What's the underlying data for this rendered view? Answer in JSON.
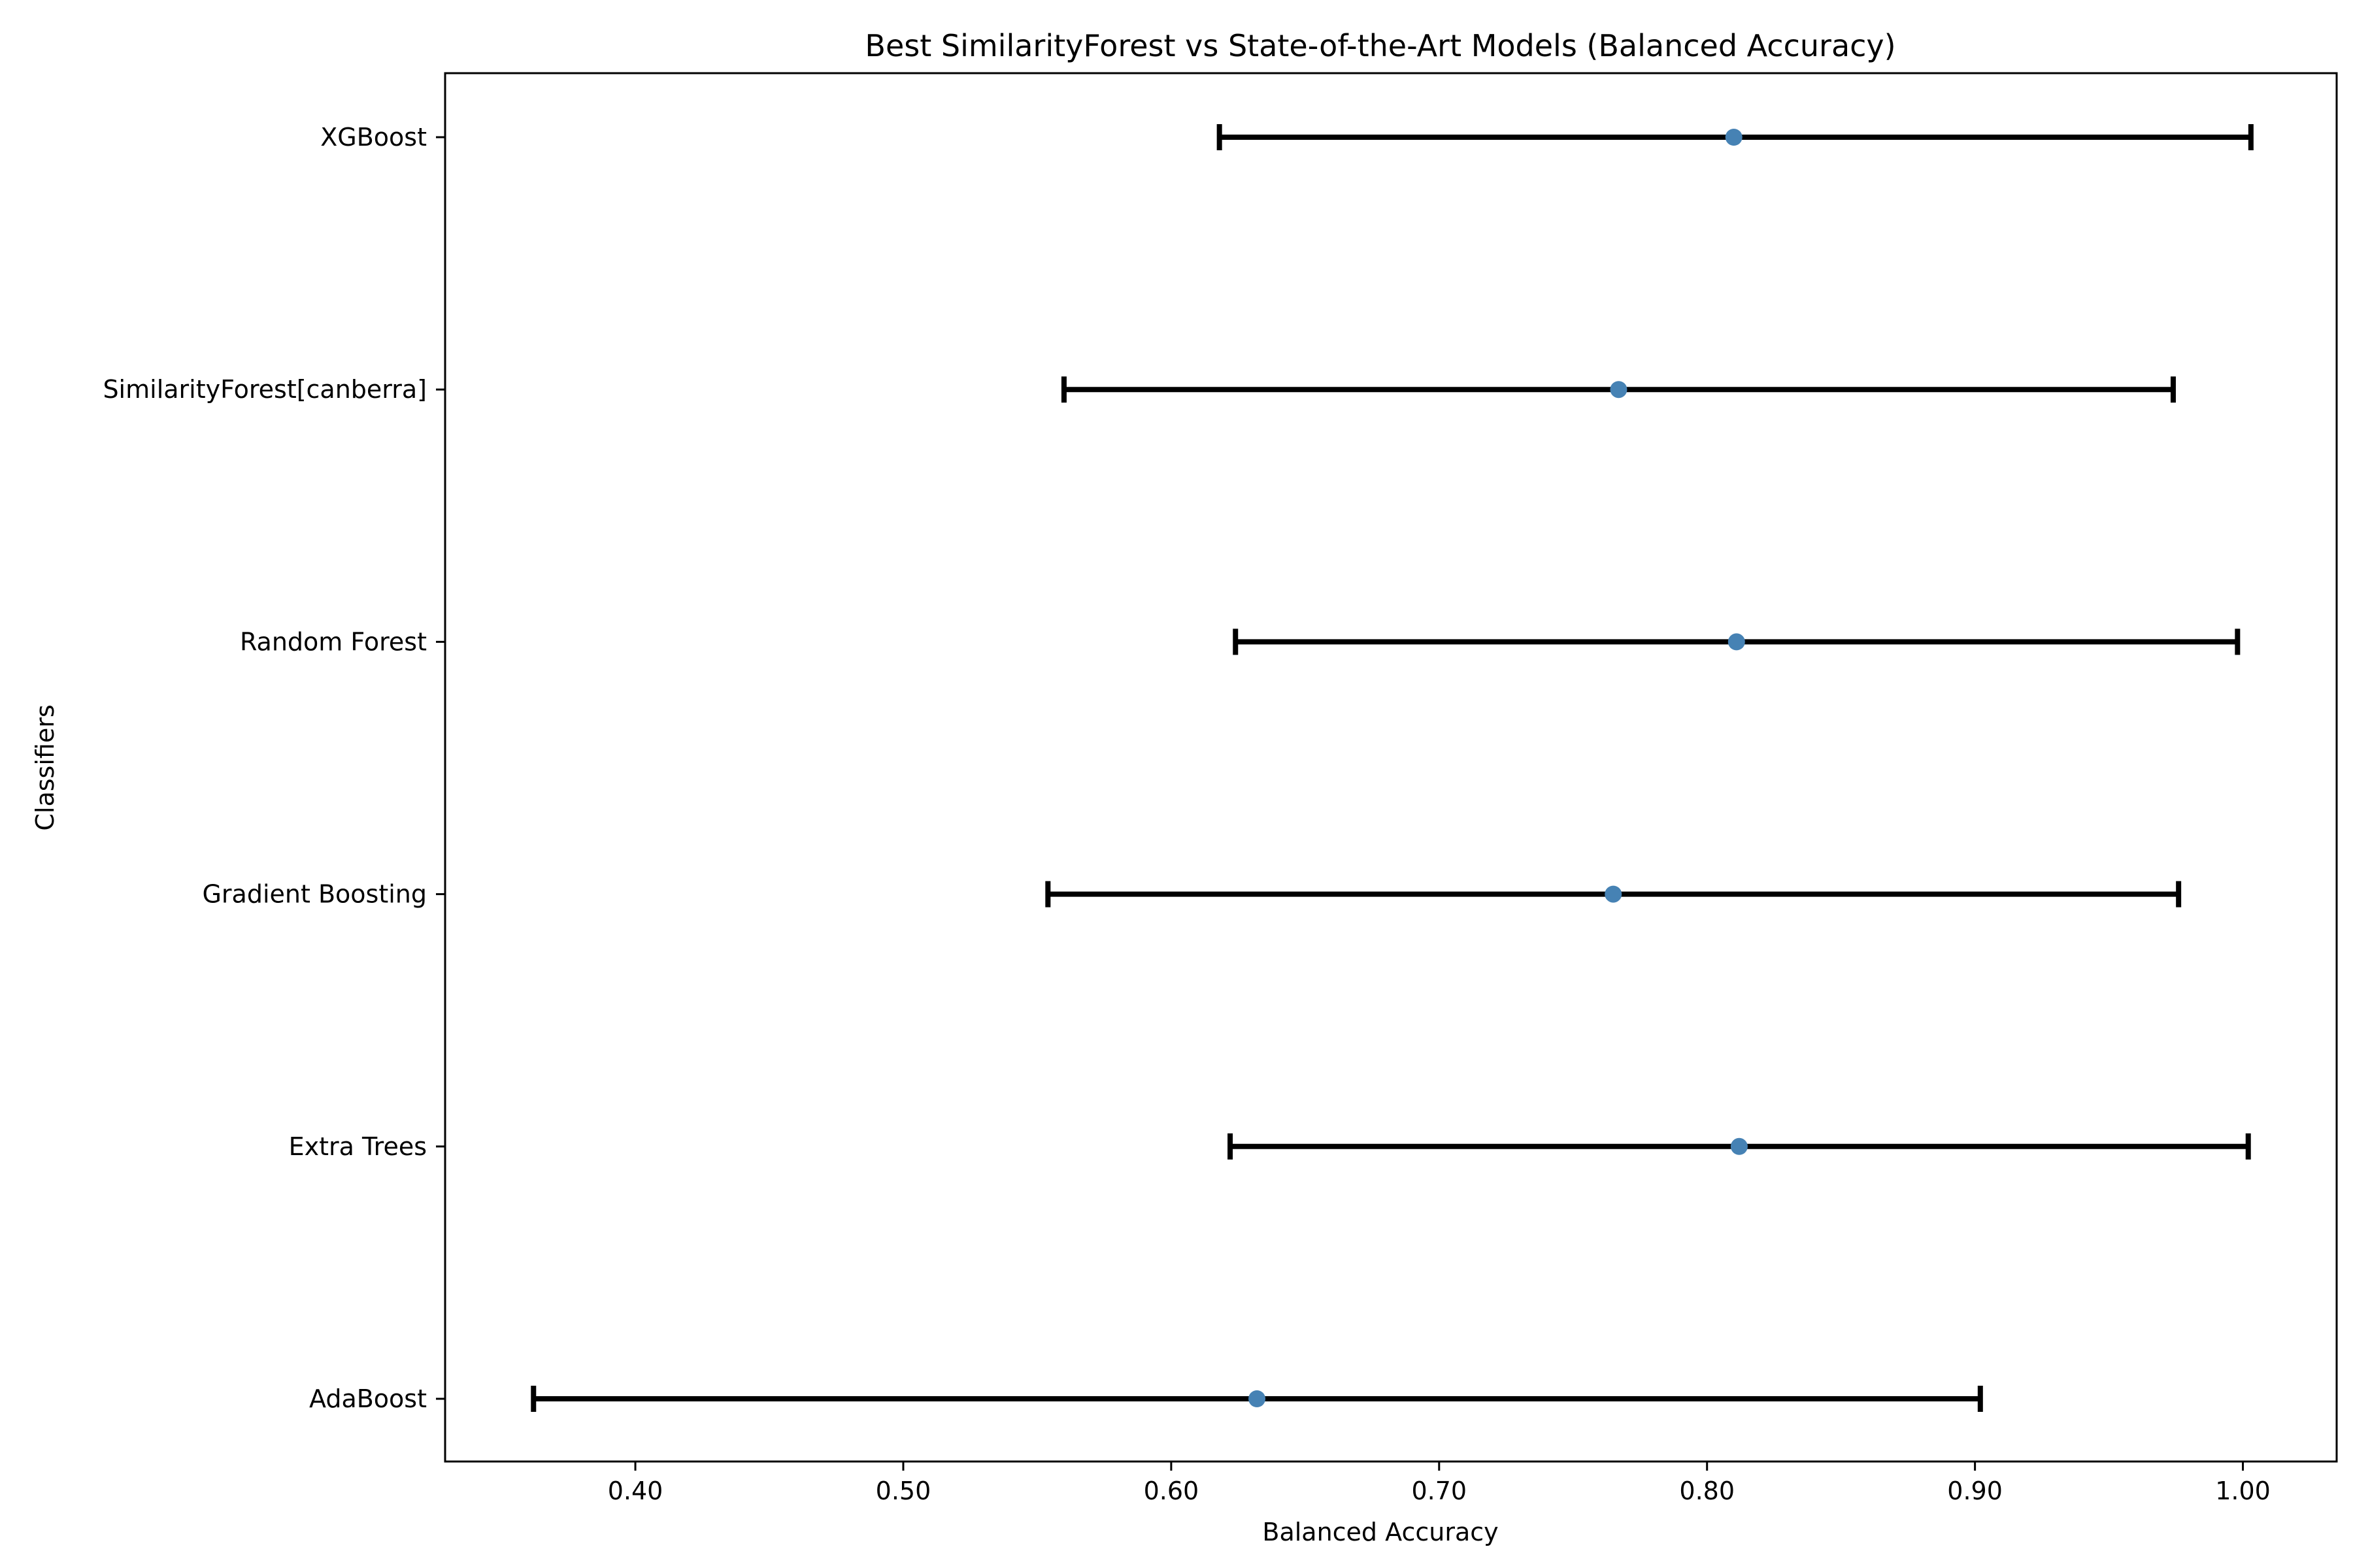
{
  "chart_data": {
    "type": "errorbar",
    "orientation": "horizontal",
    "title": "Best SimilarityForest vs State-of-the-Art Models (Balanced Accuracy)",
    "xlabel": "Balanced Accuracy",
    "ylabel": "Classifiers",
    "xlim": [
      0.329,
      1.035
    ],
    "xticks": [
      0.4,
      0.5,
      0.6,
      0.7,
      0.8,
      0.9,
      1.0
    ],
    "xtick_labels": [
      "0.40",
      "0.50",
      "0.60",
      "0.70",
      "0.80",
      "0.90",
      "1.00"
    ],
    "grid": false,
    "marker_color": "#4682b4",
    "errorbar_color": "#000000",
    "categories": [
      "AdaBoost",
      "Extra Trees",
      "Gradient Boosting",
      "Random Forest",
      "SimilarityForest[canberra]",
      "XGBoost"
    ],
    "series": [
      {
        "name": "Balanced Accuracy",
        "values": [
          0.632,
          0.812,
          0.765,
          0.811,
          0.767,
          0.81
        ],
        "lower": [
          0.362,
          0.622,
          0.554,
          0.624,
          0.56,
          0.618
        ],
        "upper": [
          0.902,
          1.002,
          0.976,
          0.998,
          0.974,
          1.003
        ]
      }
    ]
  }
}
